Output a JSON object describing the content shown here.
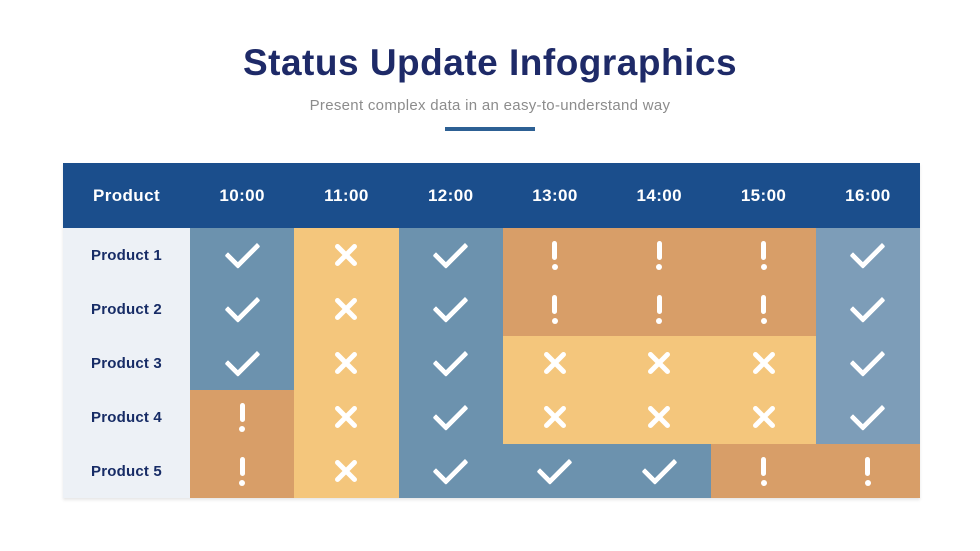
{
  "page": {
    "title": "Status Update Infographics",
    "subtitle": "Present complex data in an easy-to-understand way"
  },
  "colors": {
    "title_text": "#1E2A68",
    "subtitle_text": "#8C8C8C",
    "divider": "#2D6094",
    "header_bg": "#1B4E8C",
    "header_text": "#FFFFFF",
    "row_label_bg": "#EDF1F6",
    "row_label_text": "#172C66",
    "status_check_bg": "#6C92AE",
    "status_check_light_bg": "#7D9DB8",
    "status_cross_bg": "#F4C67C",
    "status_warn_bg": "#D89E68",
    "symbol": "#FFFFFF"
  },
  "chart_data": {
    "type": "table",
    "title": "Status Update Infographics",
    "subtitle": "Present complex data in an easy-to-understand way",
    "columns": [
      "Product",
      "10:00",
      "11:00",
      "12:00",
      "13:00",
      "14:00",
      "15:00",
      "16:00"
    ],
    "symbols": {
      "check": "✓",
      "cross": "✕",
      "warn": "!"
    },
    "rows": [
      {
        "label": "Product 1",
        "cells": [
          {
            "status": "check"
          },
          {
            "status": "cross"
          },
          {
            "status": "check"
          },
          {
            "status": "warn"
          },
          {
            "status": "warn"
          },
          {
            "status": "warn"
          },
          {
            "status": "check"
          }
        ]
      },
      {
        "label": "Product 2",
        "cells": [
          {
            "status": "check"
          },
          {
            "status": "cross"
          },
          {
            "status": "check"
          },
          {
            "status": "warn"
          },
          {
            "status": "warn"
          },
          {
            "status": "warn"
          },
          {
            "status": "check"
          }
        ]
      },
      {
        "label": "Product 3",
        "cells": [
          {
            "status": "check"
          },
          {
            "status": "cross"
          },
          {
            "status": "check"
          },
          {
            "status": "cross"
          },
          {
            "status": "cross"
          },
          {
            "status": "cross"
          },
          {
            "status": "check"
          }
        ]
      },
      {
        "label": "Product 4",
        "cells": [
          {
            "status": "warn"
          },
          {
            "status": "cross"
          },
          {
            "status": "check"
          },
          {
            "status": "cross"
          },
          {
            "status": "cross"
          },
          {
            "status": "cross"
          },
          {
            "status": "check"
          }
        ]
      },
      {
        "label": "Product 5",
        "cells": [
          {
            "status": "warn"
          },
          {
            "status": "cross"
          },
          {
            "status": "check"
          },
          {
            "status": "check"
          },
          {
            "status": "check"
          },
          {
            "status": "warn"
          },
          {
            "status": "warn"
          }
        ]
      }
    ]
  }
}
